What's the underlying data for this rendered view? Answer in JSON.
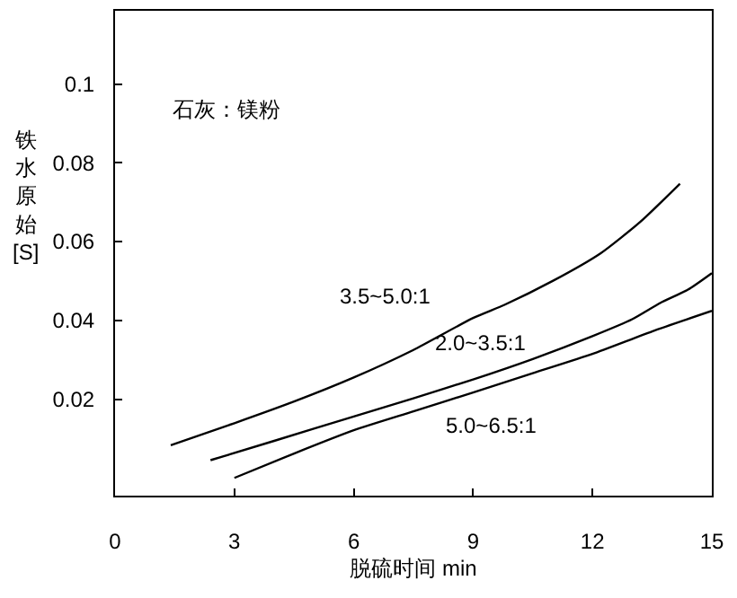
{
  "chart_data": {
    "type": "line",
    "xlabel": "脱硫时间 min",
    "ylabel": "铁水原始[S]",
    "xlim": [
      0,
      15
    ],
    "xticks": [
      0,
      3,
      6,
      9,
      12,
      15
    ],
    "ylim": [
      -0.0045,
      0.1186
    ],
    "yticks": [
      0.02,
      0.04,
      0.06,
      0.08,
      0.1
    ],
    "grid": false,
    "legend": false,
    "marker": "none",
    "line_style": "solid",
    "series": [
      {
        "name": "3.5~5.0:1",
        "color": "#000000",
        "x": [
          1.4,
          3,
          4.5,
          6,
          7.5,
          9,
          9.8,
          11,
          12.2,
          13.2,
          14.2
        ],
        "values": [
          0.0083,
          0.0139,
          0.0194,
          0.0255,
          0.0325,
          0.0406,
          0.044,
          0.05,
          0.057,
          0.065,
          0.0747
        ]
      },
      {
        "name": "2.0~3.5:1",
        "color": "#000000",
        "x": [
          2.4,
          4,
          6,
          7.5,
          9,
          10.5,
          12,
          13,
          13.7,
          14.4,
          15
        ],
        "values": [
          0.0045,
          0.0094,
          0.0156,
          0.0202,
          0.025,
          0.0302,
          0.036,
          0.0403,
          0.0444,
          0.0478,
          0.052
        ]
      },
      {
        "name": "5.0~6.5:1",
        "color": "#000000",
        "x": [
          3,
          4.5,
          6,
          7.5,
          9,
          10.5,
          12,
          13.5,
          15
        ],
        "values": [
          0,
          0.0062,
          0.0121,
          0.0169,
          0.0217,
          0.0266,
          0.0315,
          0.0372,
          0.0424
        ]
      }
    ],
    "annotations": [
      "石灰：镁粉"
    ]
  }
}
